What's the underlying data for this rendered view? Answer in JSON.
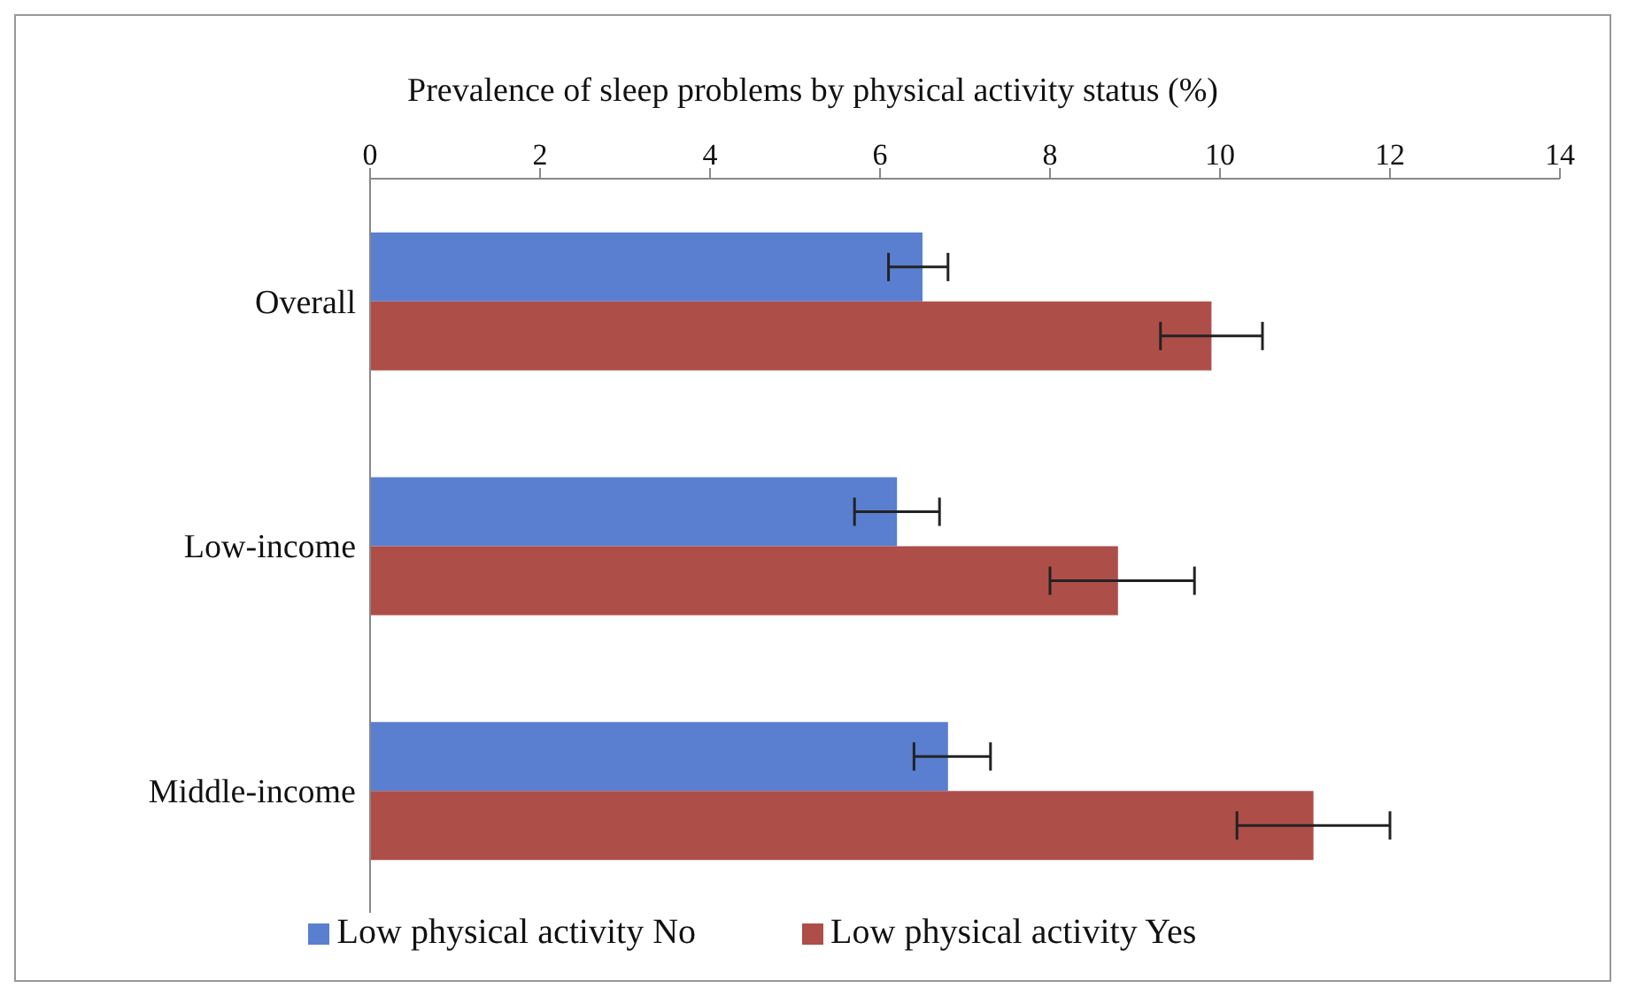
{
  "chart_data": {
    "type": "bar",
    "orientation": "horizontal",
    "title": "Prevalence of sleep problems by physical activity status (%)",
    "categories": [
      "Overall",
      "Low-income",
      "Middle-income"
    ],
    "series": [
      {
        "name": "Low physical activity No",
        "color": "#5a7fd0",
        "values": [
          6.5,
          6.2,
          6.8
        ],
        "errors": [
          [
            6.1,
            6.8
          ],
          [
            5.7,
            6.7
          ],
          [
            6.4,
            7.3
          ]
        ]
      },
      {
        "name": "Low physical activity Yes",
        "color": "#ae4e49",
        "values": [
          9.9,
          8.8,
          11.1
        ],
        "errors": [
          [
            9.3,
            10.5
          ],
          [
            8.0,
            9.7
          ],
          [
            10.2,
            12.0
          ]
        ]
      }
    ],
    "xlim": [
      0,
      14
    ],
    "xticks": [
      0,
      2,
      4,
      6,
      8,
      10,
      12,
      14
    ],
    "grid": false,
    "legend": "bottom"
  }
}
